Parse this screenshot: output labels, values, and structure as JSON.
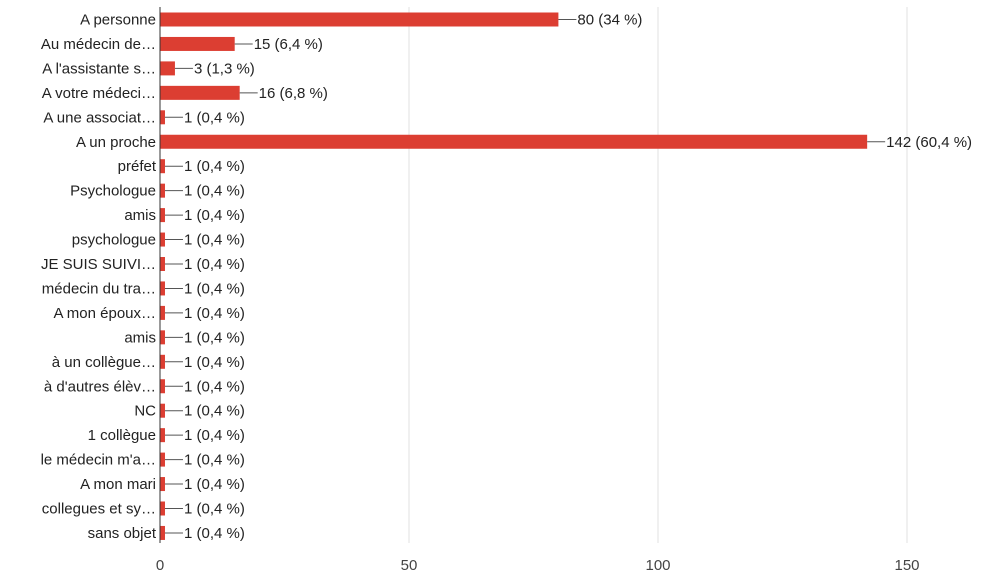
{
  "chart_data": {
    "type": "bar",
    "orientation": "horizontal",
    "title": "",
    "xlabel": "",
    "ylabel": "",
    "xlim": [
      0,
      150
    ],
    "ticks": [
      0,
      50,
      100,
      150
    ],
    "grid": true,
    "bar_color": "#dc3e32",
    "categories": [
      "A personne",
      "Au médecin de…",
      "A l'assistante s…",
      "A votre médeci…",
      "A une associat…",
      "A un proche",
      "préfet",
      "Psychologue",
      "amis",
      "psychologue",
      "JE SUIS SUIVI…",
      "médecin du tra…",
      "A mon époux…",
      "amis",
      "à un collègue…",
      "à d'autres élèv…",
      "NC",
      "1 collègue",
      "le médecin m'a…",
      "A mon mari",
      "collegues et sy…",
      "sans objet"
    ],
    "values": [
      80,
      15,
      3,
      16,
      1,
      142,
      1,
      1,
      1,
      1,
      1,
      1,
      1,
      1,
      1,
      1,
      1,
      1,
      1,
      1,
      1,
      1
    ],
    "data_labels": [
      "80 (34 %)",
      "15 (6,4 %)",
      "3 (1,3 %)",
      "16 (6,8 %)",
      "1 (0,4 %)",
      "142 (60,4 %)",
      "1 (0,4 %)",
      "1 (0,4 %)",
      "1 (0,4 %)",
      "1 (0,4 %)",
      "1 (0,4 %)",
      "1 (0,4 %)",
      "1 (0,4 %)",
      "1 (0,4 %)",
      "1 (0,4 %)",
      "1 (0,4 %)",
      "1 (0,4 %)",
      "1 (0,4 %)",
      "1 (0,4 %)",
      "1 (0,4 %)",
      "1 (0,4 %)",
      "1 (0,4 %)"
    ]
  }
}
